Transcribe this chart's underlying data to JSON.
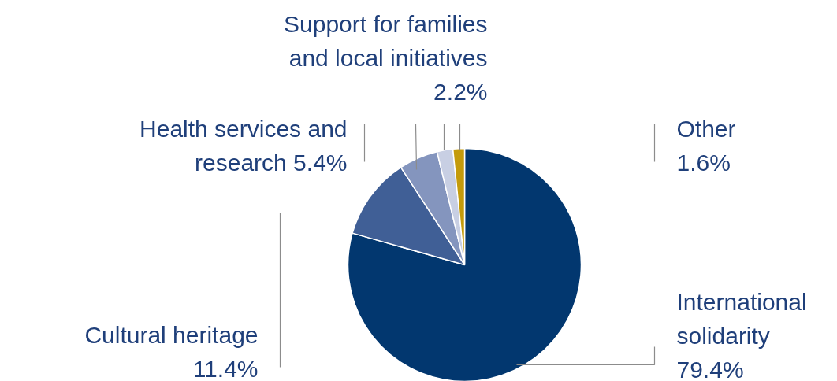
{
  "chart_data": {
    "type": "pie",
    "categories": [
      "International solidarity",
      "Cultural heritage",
      "Health services and research",
      "Support for families and local initiatives",
      "Other"
    ],
    "values": [
      79.4,
      11.4,
      5.4,
      2.2,
      1.6
    ],
    "value_labels": [
      "79.4%",
      "11.4%",
      "5.4%",
      "2.2%",
      "1.6%"
    ],
    "colors": [
      "#02376f",
      "#405f96",
      "#8495be",
      "#c8cfe3",
      "#c49b0b"
    ]
  }
}
